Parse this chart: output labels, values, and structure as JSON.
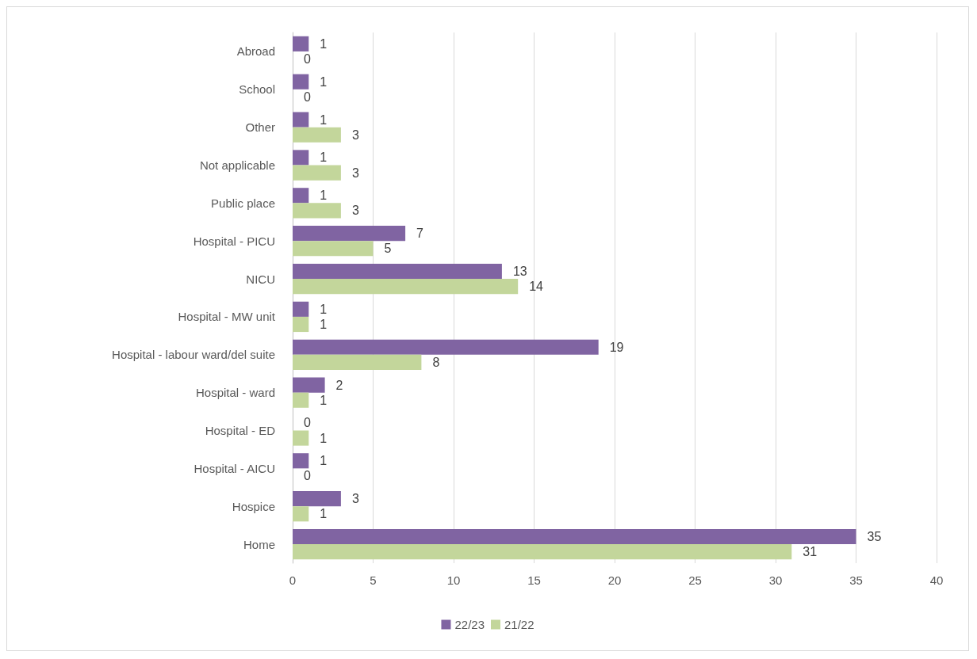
{
  "chart_data": {
    "type": "bar",
    "orientation": "horizontal",
    "categories": [
      "Abroad",
      "School",
      "Other",
      "Not applicable",
      "Public place",
      "Hospital - PICU",
      "NICU",
      "Hospital - MW unit",
      "Hospital - labour ward/del suite",
      "Hospital - ward",
      "Hospital - ED",
      "Hospital - AICU",
      "Hospice",
      "Home"
    ],
    "series": [
      {
        "name": "22/23",
        "color": "#8064a2",
        "values": [
          1,
          1,
          1,
          1,
          1,
          7,
          13,
          1,
          19,
          2,
          0,
          1,
          3,
          35
        ]
      },
      {
        "name": "21/22",
        "color": "#c3d69b",
        "values": [
          0,
          0,
          3,
          3,
          3,
          5,
          14,
          1,
          8,
          1,
          1,
          0,
          1,
          31
        ]
      }
    ],
    "xlim": [
      0,
      40
    ],
    "xticks": [
      0,
      5,
      10,
      15,
      20,
      25,
      30,
      35,
      40
    ],
    "grid": "x",
    "legend": "bottom",
    "data_labels": true
  }
}
